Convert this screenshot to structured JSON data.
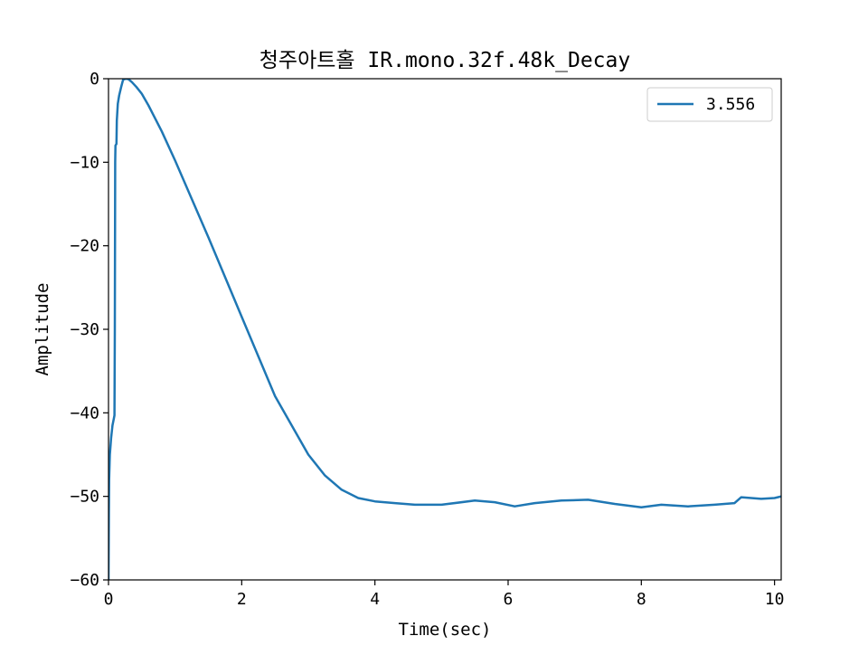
{
  "chart_data": {
    "type": "line",
    "title": "청주아트홀 IR.mono.32f.48k_Decay",
    "xlabel": "Time(sec)",
    "ylabel": "Amplitude",
    "xlim": [
      0,
      10.1
    ],
    "ylim": [
      -60,
      0
    ],
    "xticks": [
      0,
      2,
      4,
      6,
      8,
      10
    ],
    "yticks": [
      0,
      -10,
      -20,
      -30,
      -40,
      -50,
      -60
    ],
    "x_tick_labels": [
      "0",
      "2",
      "4",
      "6",
      "8",
      "10"
    ],
    "y_tick_labels": [
      "0",
      "−10",
      "−20",
      "−30",
      "−40",
      "−50",
      "−60"
    ],
    "grid": false,
    "legend_position": "top-right",
    "series": [
      {
        "name": "3.556",
        "color": "#1f77b4",
        "points": [
          [
            0.0,
            -60.0
          ],
          [
            0.005,
            -52.0
          ],
          [
            0.01,
            -48.0
          ],
          [
            0.02,
            -45.0
          ],
          [
            0.04,
            -43.0
          ],
          [
            0.06,
            -41.5
          ],
          [
            0.08,
            -40.7
          ],
          [
            0.09,
            -40.3
          ],
          [
            0.095,
            -30.0
          ],
          [
            0.1,
            -10.0
          ],
          [
            0.105,
            -8.0
          ],
          [
            0.12,
            -7.8
          ],
          [
            0.125,
            -5.0
          ],
          [
            0.14,
            -3.0
          ],
          [
            0.16,
            -2.0
          ],
          [
            0.19,
            -1.0
          ],
          [
            0.22,
            -0.1
          ],
          [
            0.26,
            0.0
          ],
          [
            0.3,
            -0.05
          ],
          [
            0.35,
            -0.4
          ],
          [
            0.42,
            -1.0
          ],
          [
            0.5,
            -1.8
          ],
          [
            0.6,
            -3.2
          ],
          [
            0.8,
            -6.3
          ],
          [
            1.0,
            -9.8
          ],
          [
            1.5,
            -19.0
          ],
          [
            2.0,
            -28.5
          ],
          [
            2.5,
            -38.0
          ],
          [
            3.0,
            -45.0
          ],
          [
            3.25,
            -47.5
          ],
          [
            3.5,
            -49.2
          ],
          [
            3.75,
            -50.2
          ],
          [
            4.0,
            -50.6
          ],
          [
            4.3,
            -50.8
          ],
          [
            4.6,
            -51.0
          ],
          [
            5.0,
            -51.0
          ],
          [
            5.5,
            -50.5
          ],
          [
            5.8,
            -50.7
          ],
          [
            6.1,
            -51.2
          ],
          [
            6.4,
            -50.8
          ],
          [
            6.8,
            -50.5
          ],
          [
            7.2,
            -50.4
          ],
          [
            7.6,
            -50.9
          ],
          [
            8.0,
            -51.3
          ],
          [
            8.3,
            -51.0
          ],
          [
            8.7,
            -51.2
          ],
          [
            9.1,
            -51.0
          ],
          [
            9.4,
            -50.8
          ],
          [
            9.5,
            -50.1
          ],
          [
            9.8,
            -50.3
          ],
          [
            10.0,
            -50.2
          ],
          [
            10.1,
            -50.0
          ]
        ]
      }
    ]
  }
}
